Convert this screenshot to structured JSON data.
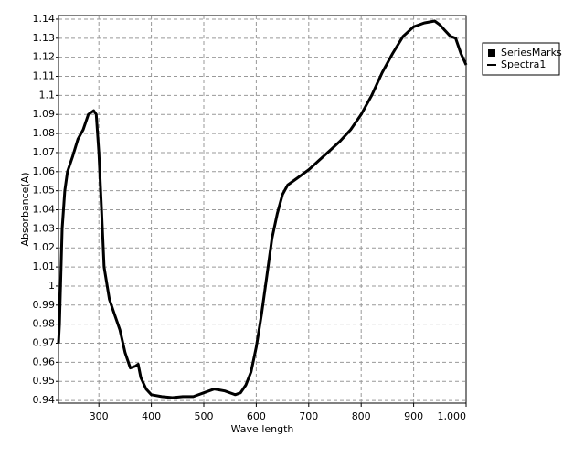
{
  "chart_data": {
    "type": "line",
    "x_label": "Wave length",
    "y_label": "Absorbance(A)",
    "x": [
      223,
      225,
      230,
      235,
      240,
      250,
      260,
      270,
      280,
      290,
      295,
      300,
      305,
      310,
      320,
      330,
      340,
      350,
      360,
      370,
      375,
      380,
      390,
      400,
      420,
      440,
      460,
      480,
      500,
      520,
      540,
      560,
      570,
      580,
      590,
      600,
      610,
      620,
      630,
      640,
      650,
      660,
      680,
      700,
      720,
      740,
      760,
      780,
      800,
      820,
      840,
      860,
      880,
      900,
      920,
      940,
      950,
      960,
      970,
      980,
      990,
      1000
    ],
    "series": [
      {
        "color": "#000000",
        "values": [
          0.97,
          0.98,
          1.03,
          1.05,
          1.06,
          1.068,
          1.077,
          1.082,
          1.09,
          1.092,
          1.09,
          1.07,
          1.04,
          1.01,
          0.993,
          0.985,
          0.977,
          0.965,
          0.957,
          0.958,
          0.959,
          0.952,
          0.946,
          0.943,
          0.942,
          0.9415,
          0.942,
          0.942,
          0.944,
          0.946,
          0.945,
          0.943,
          0.944,
          0.948,
          0.955,
          0.968,
          0.985,
          1.005,
          1.025,
          1.038,
          1.048,
          1.053,
          1.057,
          1.061,
          1.066,
          1.071,
          1.076,
          1.082,
          1.09,
          1.1,
          1.112,
          1.122,
          1.131,
          1.136,
          1.138,
          1.139,
          1.137,
          1.134,
          1.131,
          1.13,
          1.122,
          1.116
        ]
      }
    ],
    "legend": [
      {
        "name": "SeriesMarks",
        "symbol": "square"
      },
      {
        "name": "Spectra1",
        "symbol": "line"
      }
    ],
    "xlim": [
      223,
      1000
    ],
    "ylim": [
      0.9386,
      1.1419
    ],
    "xticks": [
      300,
      400,
      500,
      600,
      700,
      800,
      900,
      {
        "value": 1000,
        "label": "1,000"
      }
    ],
    "yticks": [
      0.94,
      0.95,
      0.96,
      0.97,
      0.98,
      0.99,
      1,
      1.01,
      1.02,
      1.03,
      1.04,
      1.05,
      1.06,
      1.07,
      1.08,
      1.09,
      1.1,
      1.11,
      1.12,
      1.13,
      1.14
    ],
    "grid": true
  }
}
